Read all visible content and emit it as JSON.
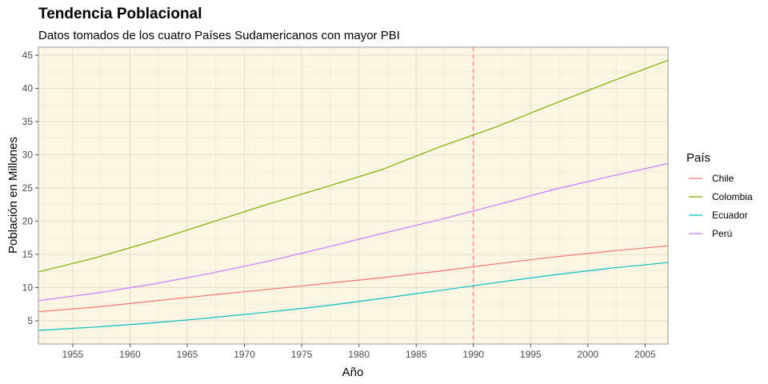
{
  "chart_data": {
    "type": "line",
    "title": "Tendencia Poblacional",
    "subtitle": "Datos tomados de los cuatro Países Sudamericanos con mayor PBI",
    "xlabel": "Año",
    "ylabel": "Población en Millones",
    "xlim": [
      1952,
      2007
    ],
    "ylim": [
      1.5,
      46.2
    ],
    "x_ticks": [
      1955,
      1960,
      1965,
      1970,
      1975,
      1980,
      1985,
      1990,
      1995,
      2000,
      2005
    ],
    "y_ticks": [
      5,
      10,
      15,
      20,
      25,
      30,
      35,
      40,
      45
    ],
    "vline": {
      "x": 1990,
      "style": "dashed",
      "color": "#f8766d"
    },
    "background": "#fdf5e3",
    "grid": true,
    "legend": {
      "title": "País",
      "position": "right"
    },
    "x": [
      1952,
      1957,
      1962,
      1967,
      1972,
      1977,
      1982,
      1987,
      1992,
      1997,
      2002,
      2007
    ],
    "series": [
      {
        "name": "Chile",
        "color": "#f8766d",
        "values": [
          6.38,
          7.05,
          7.96,
          8.86,
          9.72,
          10.6,
          11.49,
          12.46,
          13.57,
          14.6,
          15.5,
          16.28
        ]
      },
      {
        "name": "Colombia",
        "color": "#7cae00",
        "values": [
          12.35,
          14.49,
          17.01,
          19.76,
          22.54,
          25.09,
          27.76,
          31.15,
          34.2,
          37.66,
          41.01,
          44.23
        ]
      },
      {
        "name": "Ecuador",
        "color": "#00bfc4",
        "values": [
          3.55,
          4.06,
          4.68,
          5.43,
          6.3,
          7.24,
          8.37,
          9.55,
          10.75,
          11.91,
          12.92,
          13.76
        ]
      },
      {
        "name": "Perú",
        "color": "#c77cff",
        "values": [
          8.03,
          9.15,
          10.52,
          12.13,
          13.95,
          15.99,
          18.13,
          20.2,
          22.43,
          24.75,
          26.77,
          28.67
        ]
      }
    ]
  }
}
